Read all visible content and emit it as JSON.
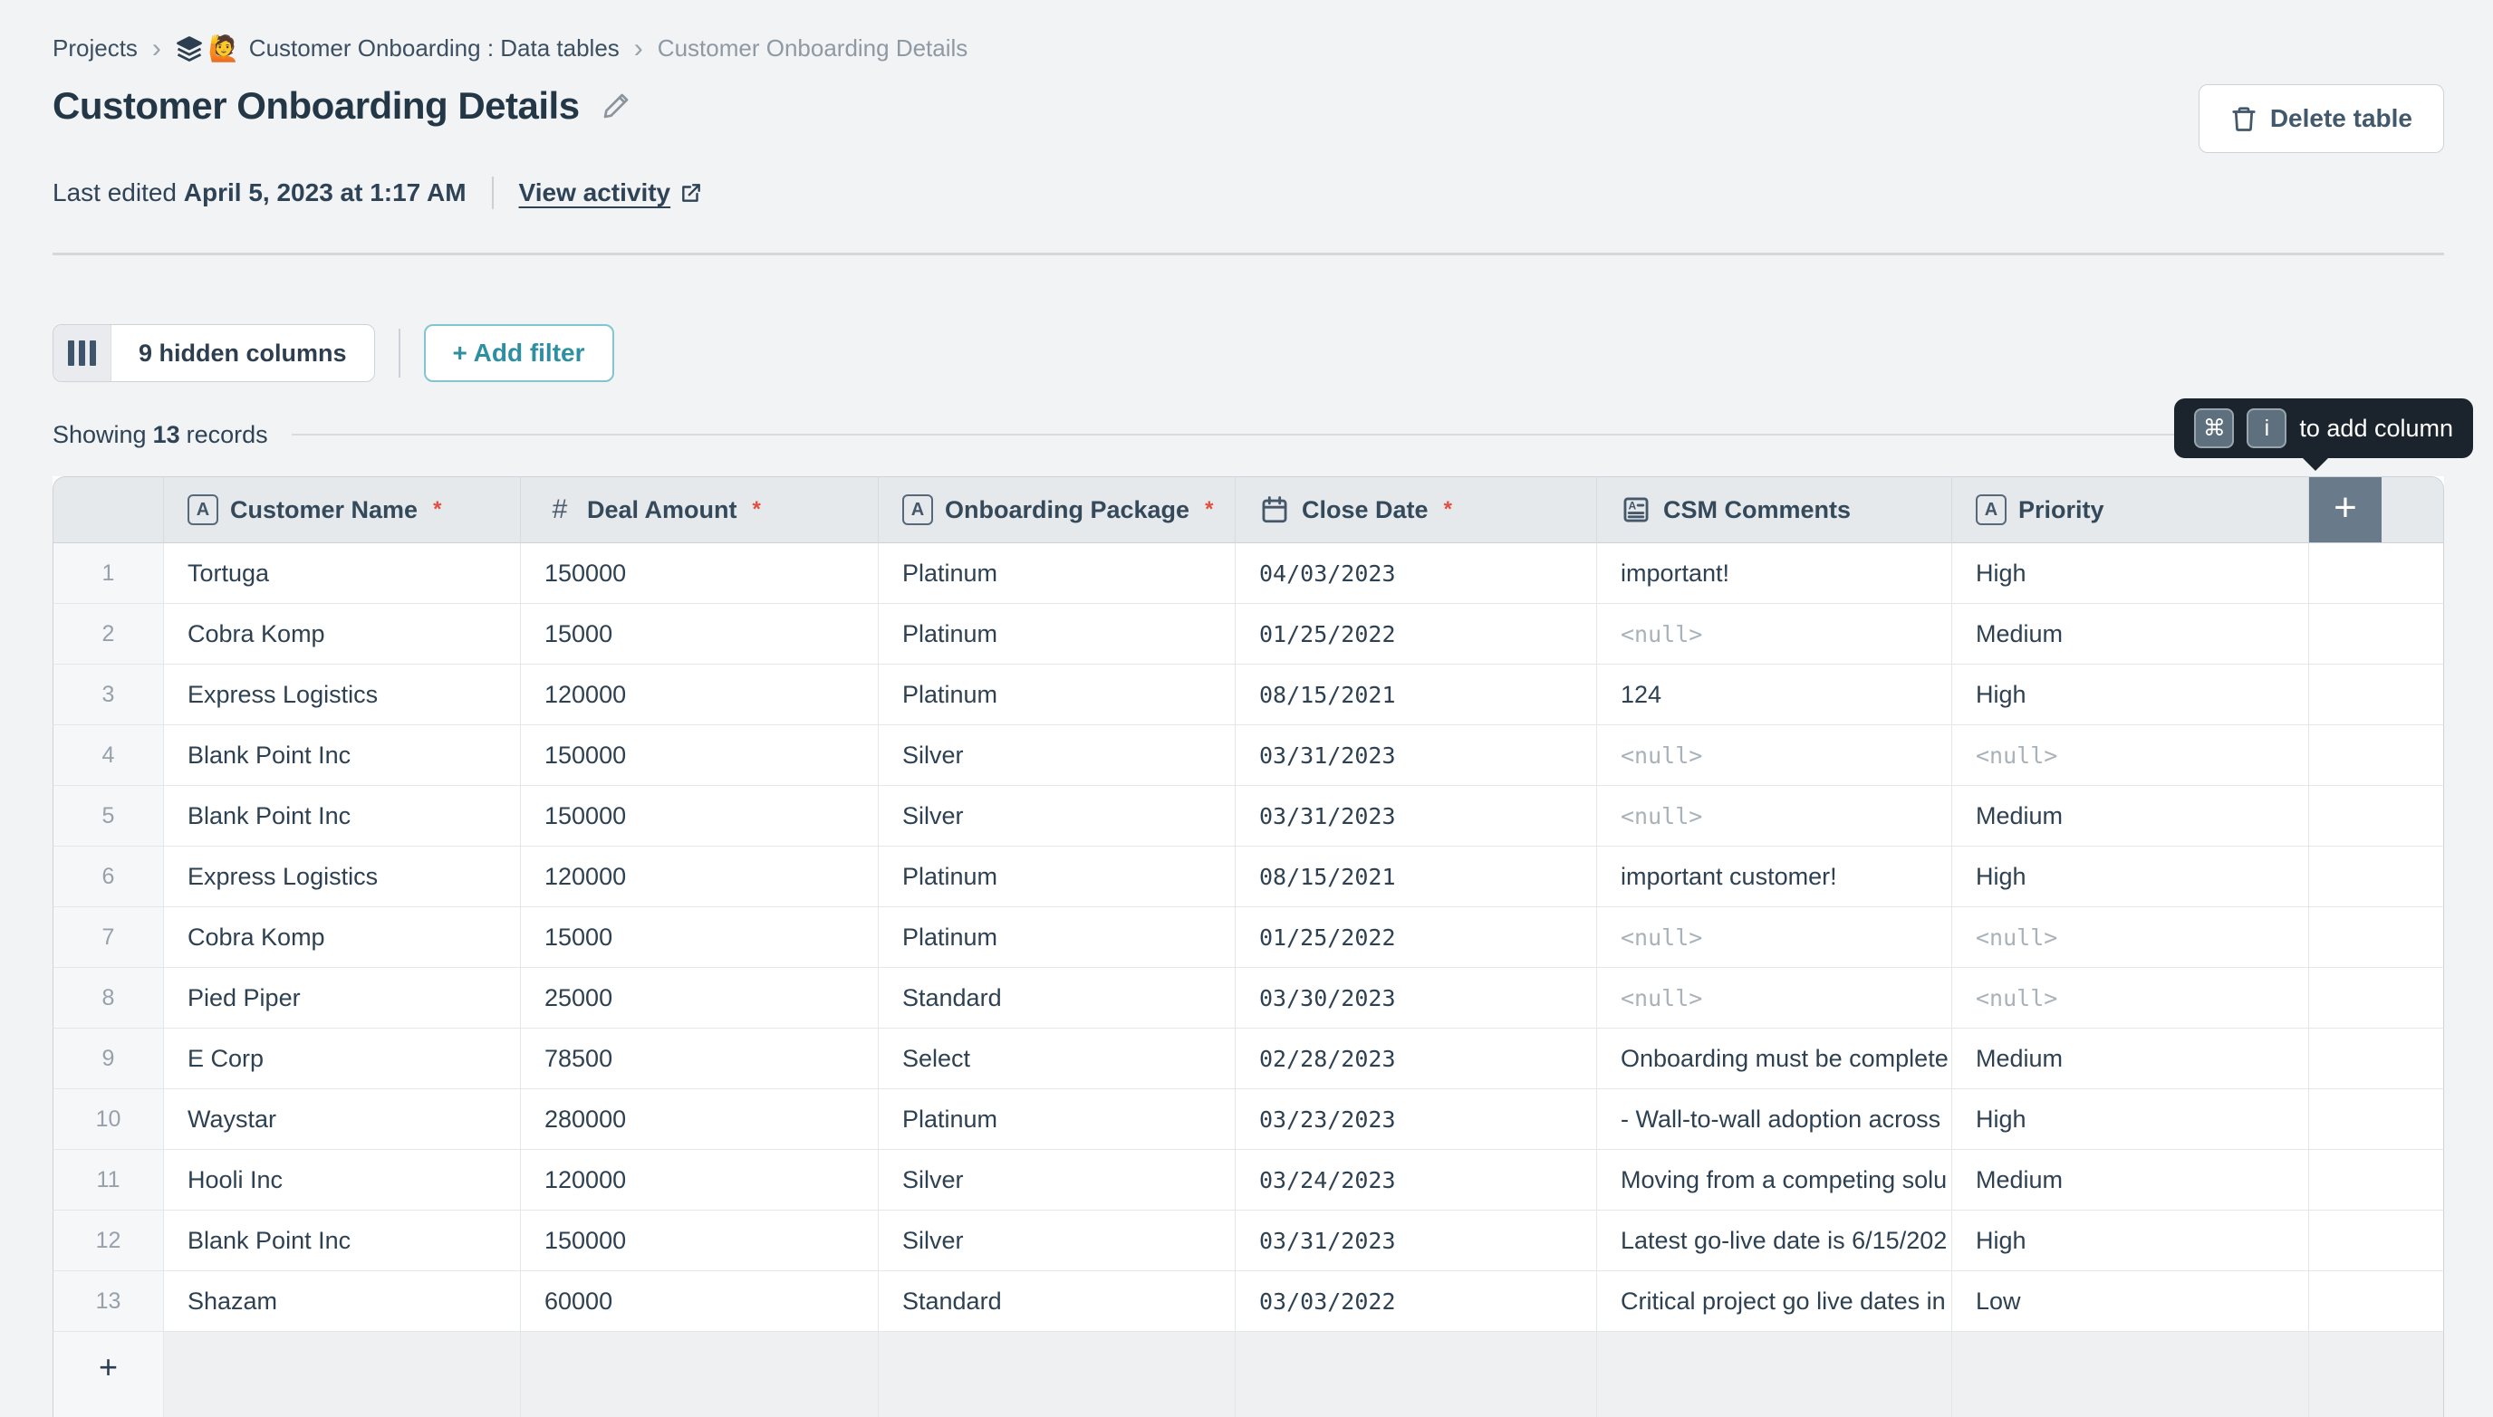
{
  "breadcrumb": {
    "separator": "›",
    "items": [
      {
        "label": "Projects"
      },
      {
        "label": "Customer Onboarding : Data tables",
        "icons": [
          "layers-icon",
          "🙋"
        ]
      },
      {
        "label": "Customer Onboarding Details"
      }
    ]
  },
  "header": {
    "title": "Customer Onboarding Details",
    "delete_button_label": "Delete table",
    "last_edited_prefix": "Last edited",
    "last_edited_value": "April 5, 2023 at 1:17 AM",
    "view_activity_label": "View activity"
  },
  "toolbar": {
    "hidden_columns_label": "9 hidden columns",
    "add_filter_label": "+ Add filter"
  },
  "status": {
    "showing_prefix": "Showing",
    "record_count": "13",
    "showing_suffix": "records"
  },
  "tooltip": {
    "keys": [
      "⌘",
      "i"
    ],
    "text": "to add column"
  },
  "table": {
    "required_marker": "*",
    "add_column_label": "+",
    "add_row_label": "+",
    "columns": [
      {
        "label": "",
        "type": "row-number"
      },
      {
        "label": "Customer Name",
        "type": "text",
        "required": true
      },
      {
        "label": "Deal Amount",
        "type": "number",
        "required": true
      },
      {
        "label": "Onboarding Package",
        "type": "text",
        "required": true
      },
      {
        "label": "Close Date",
        "type": "date",
        "required": true
      },
      {
        "label": "CSM Comments",
        "type": "rich-text",
        "required": false
      },
      {
        "label": "Priority",
        "type": "text",
        "required": false
      }
    ],
    "rows": [
      {
        "num": "1",
        "customer_name": "Tortuga",
        "deal_amount": "150000",
        "package": "Platinum",
        "close_date": "04/03/2023",
        "csm_comments": "important!",
        "priority": "High"
      },
      {
        "num": "2",
        "customer_name": "Cobra Komp",
        "deal_amount": "15000",
        "package": "Platinum",
        "close_date": "01/25/2022",
        "csm_comments": "<null>",
        "priority": "Medium"
      },
      {
        "num": "3",
        "customer_name": "Express Logistics",
        "deal_amount": "120000",
        "package": "Platinum",
        "close_date": "08/15/2021",
        "csm_comments": "124",
        "priority": "High"
      },
      {
        "num": "4",
        "customer_name": "Blank Point Inc",
        "deal_amount": "150000",
        "package": "Silver",
        "close_date": "03/31/2023",
        "csm_comments": "<null>",
        "priority": "<null>"
      },
      {
        "num": "5",
        "customer_name": "Blank Point Inc",
        "deal_amount": "150000",
        "package": "Silver",
        "close_date": "03/31/2023",
        "csm_comments": "<null>",
        "priority": "Medium"
      },
      {
        "num": "6",
        "customer_name": "Express Logistics",
        "deal_amount": "120000",
        "package": "Platinum",
        "close_date": "08/15/2021",
        "csm_comments": "important customer!",
        "priority": "High"
      },
      {
        "num": "7",
        "customer_name": "Cobra Komp",
        "deal_amount": "15000",
        "package": "Platinum",
        "close_date": "01/25/2022",
        "csm_comments": "<null>",
        "priority": "<null>"
      },
      {
        "num": "8",
        "customer_name": "Pied Piper",
        "deal_amount": "25000",
        "package": "Standard",
        "close_date": "03/30/2023",
        "csm_comments": "<null>",
        "priority": "<null>"
      },
      {
        "num": "9",
        "customer_name": "E Corp",
        "deal_amount": "78500",
        "package": "Select",
        "close_date": "02/28/2023",
        "csm_comments": "Onboarding must be complete",
        "priority": "Medium"
      },
      {
        "num": "10",
        "customer_name": "Waystar",
        "deal_amount": "280000",
        "package": "Platinum",
        "close_date": "03/23/2023",
        "csm_comments": "- Wall-to-wall adoption across",
        "priority": "High"
      },
      {
        "num": "11",
        "customer_name": "Hooli Inc",
        "deal_amount": "120000",
        "package": "Silver",
        "close_date": "03/24/2023",
        "csm_comments": "Moving from a competing solu",
        "priority": "Medium"
      },
      {
        "num": "12",
        "customer_name": "Blank Point Inc",
        "deal_amount": "150000",
        "package": "Silver",
        "close_date": "03/31/2023",
        "csm_comments": "Latest go-live date is 6/15/202",
        "priority": "High"
      },
      {
        "num": "13",
        "customer_name": "Shazam",
        "deal_amount": "60000",
        "package": "Standard",
        "close_date": "03/03/2022",
        "csm_comments": "Critical project go live dates in",
        "priority": "Low"
      }
    ]
  },
  "colors": {
    "accent_teal": "#2e8fa3",
    "required_red": "#e04f3f",
    "add_column_slate": "#697a8a",
    "tooltip_bg": "#1b242d",
    "page_bg": "#f1f3f5"
  }
}
